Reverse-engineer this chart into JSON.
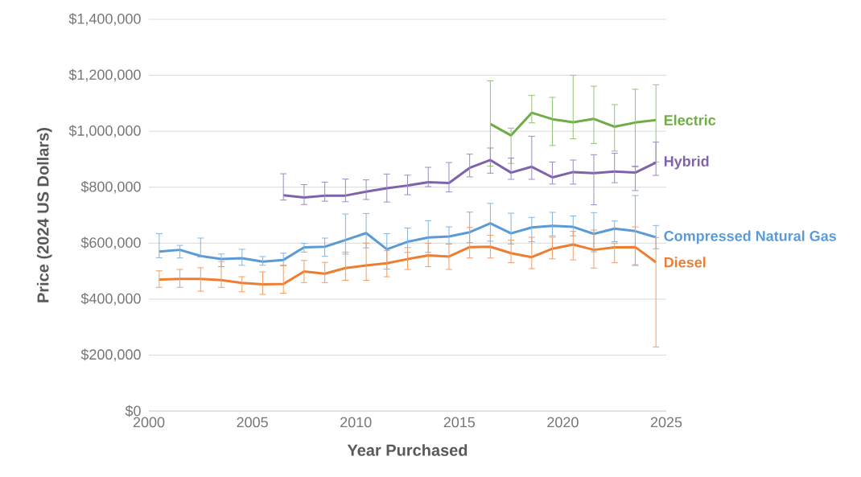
{
  "chart_data": {
    "type": "line",
    "xlabel": "Year Purchased",
    "ylabel": "Price (2024 US Dollars)",
    "xlim": [
      2000,
      2025
    ],
    "xticks": [
      2000,
      2005,
      2010,
      2015,
      2020,
      2025
    ],
    "ylim": [
      0,
      1400000
    ],
    "yticks": [
      {
        "value": 0,
        "label": "$0"
      },
      {
        "value": 200000,
        "label": "$200,000"
      },
      {
        "value": 400000,
        "label": "$400,000"
      },
      {
        "value": 600000,
        "label": "$600,000"
      },
      {
        "value": 800000,
        "label": "$800,000"
      },
      {
        "value": 1000000,
        "label": "$1,000,000"
      },
      {
        "value": 1200000,
        "label": "$1,200,000"
      },
      {
        "value": 1400000,
        "label": "$1,400,000"
      }
    ],
    "grid": "y",
    "legend": false,
    "marker": "none",
    "line_style": "solid",
    "series": [
      {
        "name": "Electric",
        "color": "#70ad47",
        "x": [
          2016.5,
          2017.5,
          2018.5,
          2019.5,
          2020.5,
          2021.5,
          2022.5,
          2023.5,
          2024.5
        ],
        "values": [
          1026000,
          985000,
          1066000,
          1043000,
          1032000,
          1044000,
          1016000,
          1031000,
          1040000
        ],
        "errors": [
          [
            875000,
            1180000
          ],
          [
            885000,
            1011000
          ],
          [
            1030000,
            1128000
          ],
          [
            949000,
            1121000
          ],
          [
            973000,
            1200000
          ],
          [
            956000,
            1161000
          ],
          [
            929000,
            1095000
          ],
          [
            873000,
            1150000
          ],
          [
            890000,
            1166000
          ]
        ]
      },
      {
        "name": "Hybrid",
        "color": "#7e62ab",
        "x": [
          2006.5,
          2007.5,
          2008.5,
          2009.5,
          2010.5,
          2011.5,
          2012.5,
          2013.5,
          2014.5,
          2015.5,
          2016.5,
          2017.5,
          2018.5,
          2019.5,
          2020.5,
          2021.5,
          2022.5,
          2023.5,
          2024.5
        ],
        "values": [
          771000,
          763000,
          770000,
          770000,
          784000,
          796000,
          806000,
          818000,
          815000,
          869000,
          897000,
          852000,
          873000,
          835000,
          854000,
          850000,
          856000,
          852000,
          888000
        ],
        "errors": [
          [
            754000,
            848000
          ],
          [
            738000,
            809000
          ],
          [
            750000,
            818000
          ],
          [
            748000,
            829000
          ],
          [
            756000,
            826000
          ],
          [
            747000,
            847000
          ],
          [
            773000,
            843000
          ],
          [
            802000,
            871000
          ],
          [
            783000,
            888000
          ],
          [
            837000,
            918000
          ],
          [
            850000,
            940000
          ],
          [
            828000,
            904000
          ],
          [
            828000,
            982000
          ],
          [
            811000,
            890000
          ],
          [
            811000,
            897000
          ],
          [
            737000,
            916000
          ],
          [
            816000,
            921000
          ],
          [
            788000,
            875000
          ],
          [
            842000,
            961000
          ]
        ]
      },
      {
        "name": "Compressed Natural Gas",
        "color": "#5b9bd5",
        "x": [
          2000.5,
          2001.5,
          2002.5,
          2003.5,
          2004.5,
          2005.5,
          2006.5,
          2007.5,
          2008.5,
          2009.5,
          2010.5,
          2011.5,
          2012.5,
          2013.5,
          2014.5,
          2015.5,
          2016.5,
          2017.5,
          2018.5,
          2019.5,
          2020.5,
          2021.5,
          2022.5,
          2023.5,
          2024.5
        ],
        "values": [
          570000,
          576000,
          554000,
          543000,
          546000,
          534000,
          540000,
          585000,
          587000,
          611000,
          636000,
          578000,
          605000,
          620000,
          624000,
          639000,
          671000,
          635000,
          656000,
          662000,
          658000,
          633000,
          652000,
          643000,
          621000
        ],
        "errors": [
          [
            548000,
            634000
          ],
          [
            547000,
            592000
          ],
          [
            550000,
            618000
          ],
          [
            516000,
            561000
          ],
          [
            521000,
            578000
          ],
          [
            521000,
            552000
          ],
          [
            521000,
            564000
          ],
          [
            568000,
            599000
          ],
          [
            553000,
            618000
          ],
          [
            561000,
            704000
          ],
          [
            583000,
            706000
          ],
          [
            507000,
            634000
          ],
          [
            567000,
            654000
          ],
          [
            567000,
            680000
          ],
          [
            597000,
            658000
          ],
          [
            602000,
            711000
          ],
          [
            607000,
            742000
          ],
          [
            597000,
            707000
          ],
          [
            605000,
            692000
          ],
          [
            626000,
            710000
          ],
          [
            626000,
            697000
          ],
          [
            569000,
            709000
          ],
          [
            605000,
            679000
          ],
          [
            520000,
            770000
          ],
          [
            580000,
            663000
          ]
        ]
      },
      {
        "name": "Diesel",
        "color": "#ed7d31",
        "x": [
          2000.5,
          2001.5,
          2002.5,
          2003.5,
          2004.5,
          2005.5,
          2006.5,
          2007.5,
          2008.5,
          2009.5,
          2010.5,
          2011.5,
          2012.5,
          2013.5,
          2014.5,
          2015.5,
          2016.5,
          2017.5,
          2018.5,
          2019.5,
          2020.5,
          2021.5,
          2022.5,
          2023.5,
          2024.5
        ],
        "values": [
          470000,
          472000,
          472000,
          468000,
          458000,
          453000,
          454000,
          499000,
          491000,
          511000,
          520000,
          528000,
          543000,
          556000,
          552000,
          586000,
          587000,
          564000,
          550000,
          580000,
          595000,
          576000,
          585000,
          586000,
          532000
        ],
        "errors": [
          [
            442000,
            501000
          ],
          [
            442000,
            506000
          ],
          [
            428000,
            512000
          ],
          [
            442000,
            534000
          ],
          [
            426000,
            480000
          ],
          [
            417000,
            497000
          ],
          [
            421000,
            519000
          ],
          [
            459000,
            538000
          ],
          [
            459000,
            531000
          ],
          [
            467000,
            568000
          ],
          [
            467000,
            600000
          ],
          [
            480000,
            573000
          ],
          [
            506000,
            584000
          ],
          [
            516000,
            600000
          ],
          [
            506000,
            597000
          ],
          [
            547000,
            656000
          ],
          [
            547000,
            628000
          ],
          [
            530000,
            611000
          ],
          [
            509000,
            621000
          ],
          [
            544000,
            621000
          ],
          [
            540000,
            642000
          ],
          [
            511000,
            647000
          ],
          [
            530000,
            600000
          ],
          [
            523000,
            658000
          ],
          [
            229000,
            620000
          ]
        ]
      }
    ]
  }
}
